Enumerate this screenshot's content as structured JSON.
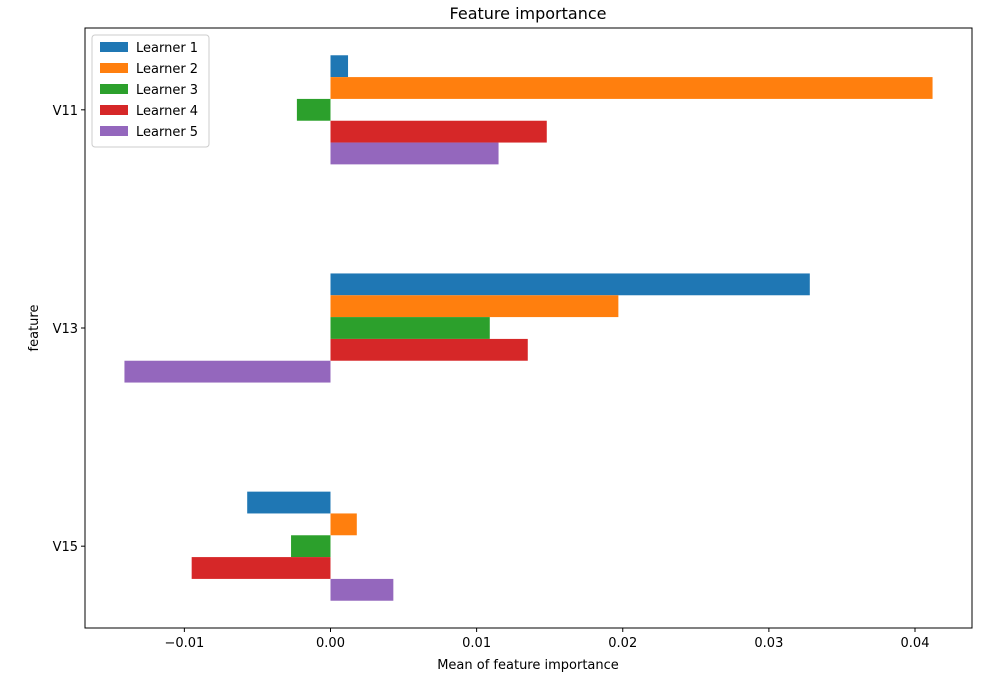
{
  "chart_data": {
    "type": "bar",
    "orientation": "horizontal",
    "title": "Feature importance",
    "xlabel": "Mean of feature importance",
    "ylabel": "feature",
    "categories": [
      "V11",
      "V13",
      "V15"
    ],
    "series": [
      {
        "name": "Learner 1",
        "color": "#1f77b4",
        "values": [
          0.0012,
          0.0328,
          -0.0057
        ]
      },
      {
        "name": "Learner 2",
        "color": "#ff7f0e",
        "values": [
          0.0412,
          0.0197,
          0.0018
        ]
      },
      {
        "name": "Learner 3",
        "color": "#2ca02c",
        "values": [
          -0.0023,
          0.0109,
          -0.0027
        ]
      },
      {
        "name": "Learner 4",
        "color": "#d62728",
        "values": [
          0.0148,
          0.0135,
          -0.0095
        ]
      },
      {
        "name": "Learner 5",
        "color": "#9467bd",
        "values": [
          0.0115,
          -0.0141,
          0.0043
        ]
      }
    ],
    "xticks": [
      -0.01,
      0.0,
      0.01,
      0.02,
      0.03,
      0.04
    ],
    "xtick_labels": [
      "−0.01",
      "0.00",
      "0.01",
      "0.02",
      "0.03",
      "0.04"
    ],
    "xlim": [
      -0.0168,
      0.0439
    ],
    "grid": false,
    "legend_position": "top-left"
  }
}
